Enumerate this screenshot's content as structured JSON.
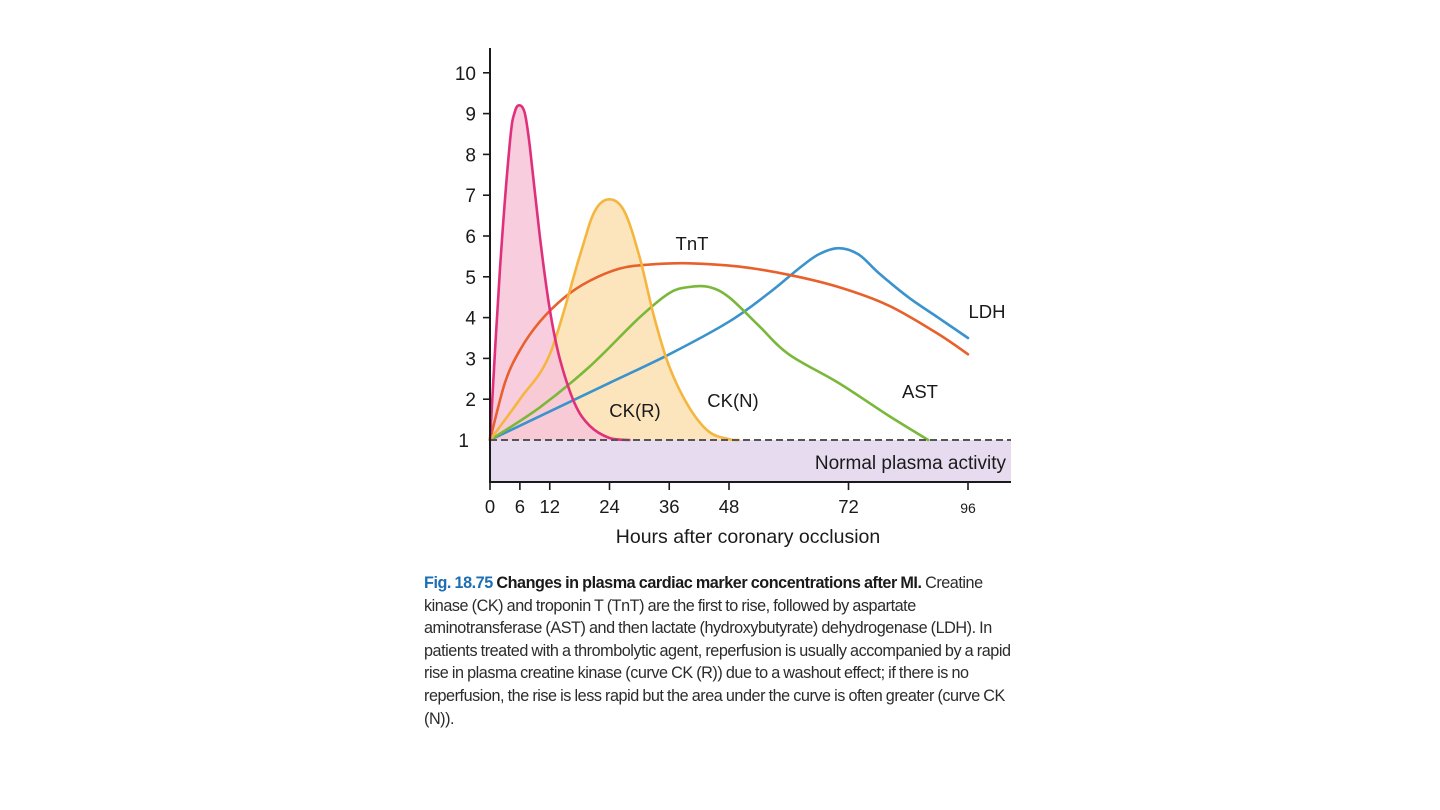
{
  "chart_data": {
    "type": "line",
    "title": "",
    "xlabel": "Hours after coronary occlusion",
    "ylabel": "",
    "xlim": [
      0,
      96
    ],
    "ylim": [
      0,
      10
    ],
    "x_ticks": [
      0,
      6,
      12,
      24,
      36,
      48,
      72,
      96
    ],
    "y_ticks": [
      1,
      2,
      3,
      4,
      5,
      6,
      7,
      8,
      9,
      10
    ],
    "baseline": {
      "y": 1,
      "label": "Normal plasma activity",
      "style": "dashed"
    },
    "grid": false,
    "legend": "none (curves labeled directly)",
    "series": [
      {
        "name": "CK(R)",
        "color": "#e0307c",
        "fill": "#f7c6d9",
        "x": [
          0,
          2,
          4,
          5,
          6,
          7,
          8,
          10,
          12,
          14,
          17,
          20,
          24,
          28
        ],
        "y": [
          1,
          5.2,
          8.3,
          9.05,
          9.2,
          9.0,
          8.2,
          6.0,
          4.2,
          3.0,
          1.9,
          1.35,
          1.05,
          1
        ]
      },
      {
        "name": "CK(N)",
        "color": "#f4b63f",
        "fill": "#fbe0b1",
        "x": [
          0,
          6,
          12,
          18,
          21,
          24,
          27,
          30,
          33,
          36,
          40,
          44,
          48,
          50
        ],
        "y": [
          1,
          2.0,
          3.1,
          5.5,
          6.6,
          6.9,
          6.6,
          5.5,
          4.0,
          2.8,
          1.8,
          1.2,
          1.02,
          1
        ]
      },
      {
        "name": "TnT",
        "color": "#e8602c",
        "x": [
          0,
          3,
          6,
          10,
          15,
          20,
          26,
          32,
          40,
          50,
          60,
          70,
          80,
          90,
          96
        ],
        "y": [
          1,
          2.4,
          3.2,
          3.9,
          4.5,
          4.9,
          5.2,
          5.3,
          5.33,
          5.25,
          5.05,
          4.75,
          4.3,
          3.6,
          3.1
        ]
      },
      {
        "name": "AST",
        "color": "#7ab83a",
        "x": [
          0,
          10,
          20,
          30,
          36,
          40,
          44,
          48,
          54,
          60,
          70,
          80,
          88
        ],
        "y": [
          1,
          1.8,
          2.8,
          4.0,
          4.6,
          4.75,
          4.75,
          4.5,
          3.8,
          3.1,
          2.4,
          1.6,
          1
        ]
      },
      {
        "name": "LDH",
        "color": "#3a93cc",
        "x": [
          0,
          12,
          24,
          36,
          48,
          56,
          62,
          66,
          70,
          74,
          78,
          84,
          90,
          96
        ],
        "y": [
          1,
          1.7,
          2.4,
          3.1,
          3.9,
          4.6,
          5.2,
          5.55,
          5.7,
          5.55,
          5.1,
          4.5,
          4.0,
          3.5
        ]
      }
    ]
  },
  "caption": {
    "fig_no": "Fig. 18.75",
    "heading": "Changes in plasma cardiac marker concentrations after MI.",
    "body": "Creatine kinase (CK) and troponin T (TnT) are the first to rise, followed by aspartate aminotransferase (AST) and then lactate (hydroxybutyrate) dehydrogenase (LDH). In patients treated with a thrombolytic agent, reperfusion is usually accompanied by a rapid rise in plasma creatine kinase (curve CK (R)) due to a washout effect; if there is no reperfusion, the rise is less rapid but the area under the curve is often greater (curve CK (N))."
  }
}
